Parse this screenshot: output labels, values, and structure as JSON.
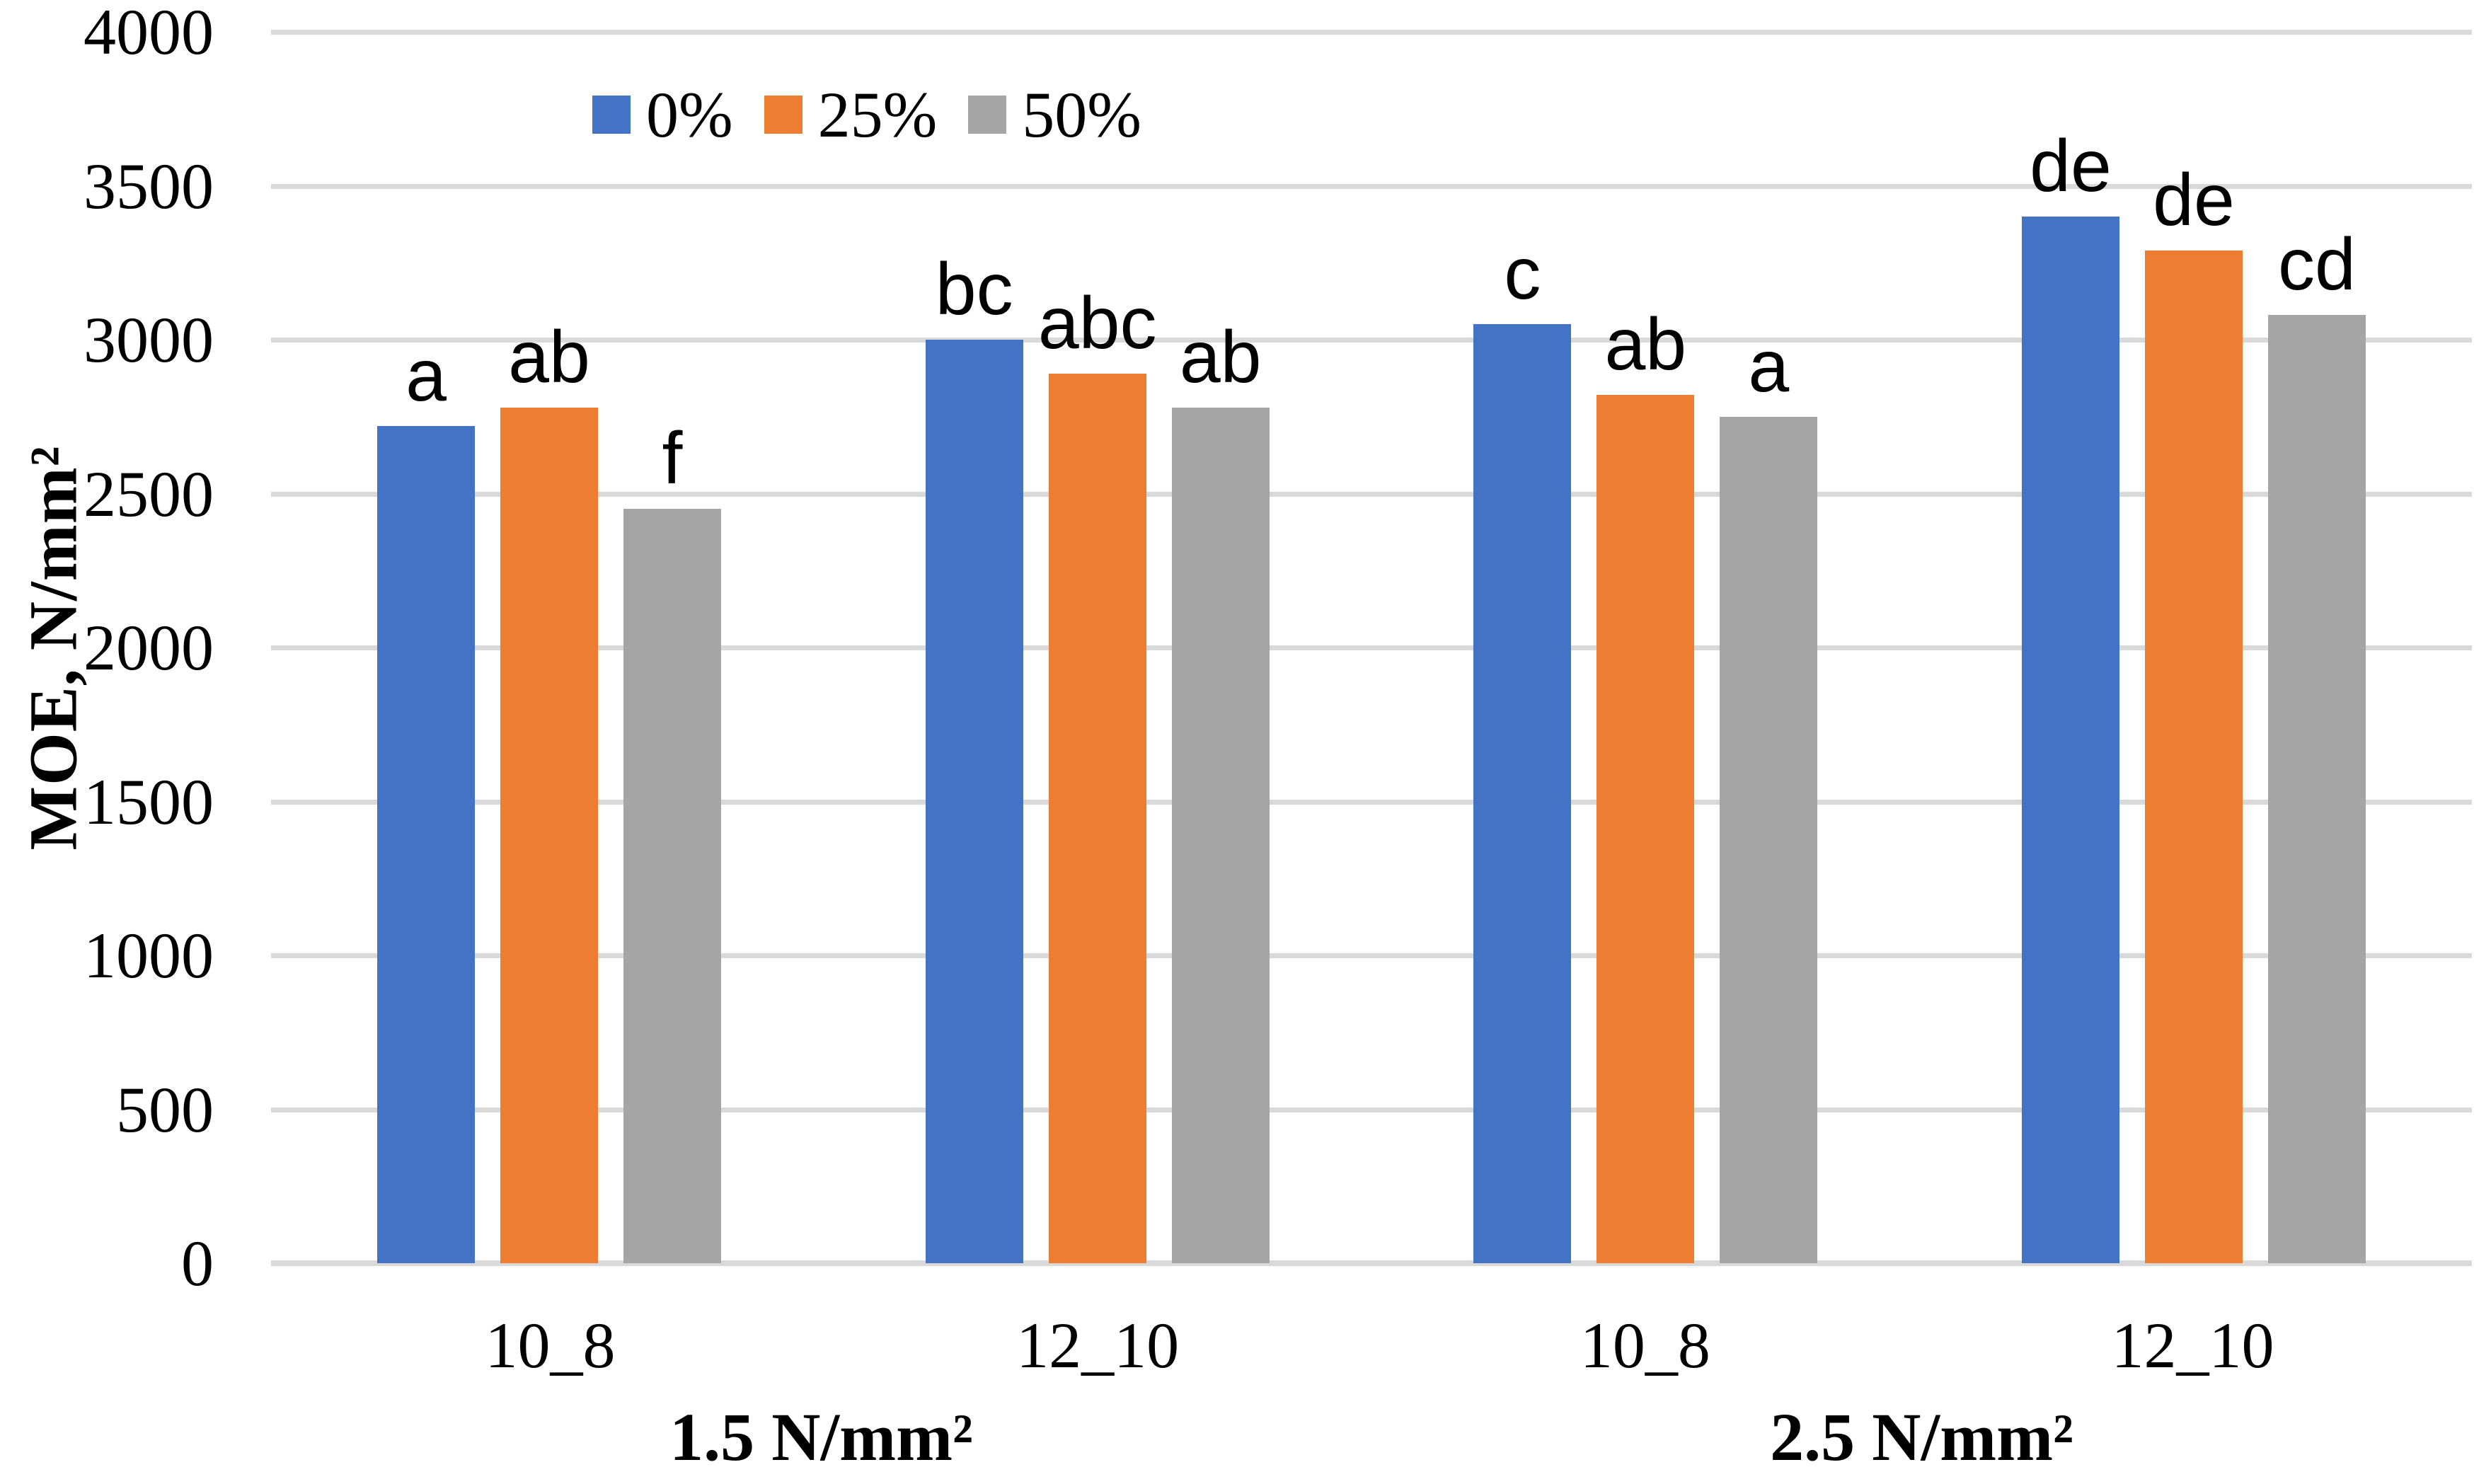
{
  "chart_data": {
    "type": "bar",
    "title": "",
    "ylabel": "MOE, N/mm²",
    "xlabel": "",
    "ylim": [
      0,
      4000
    ],
    "ytick_step": 500,
    "yticks": [
      0,
      500,
      1000,
      1500,
      2000,
      2500,
      3000,
      3500,
      4000
    ],
    "grid": "horizontal",
    "gridline_color": "#D9D9D9",
    "axis_line_color": "#D9D9D9",
    "background_color": "#FFFFFF",
    "legend_position": "top",
    "groups": [
      {
        "label": "1.5 N/mm²",
        "categories": [
          "10_8",
          "12_10"
        ]
      },
      {
        "label": "2.5 N/mm²",
        "categories": [
          "10_8",
          "12_10"
        ]
      }
    ],
    "categories": [
      "10_8",
      "12_10",
      "10_8",
      "12_10"
    ],
    "series": [
      {
        "name": "0%",
        "color": "#4472C4",
        "values": [
          2720,
          3000,
          3050,
          3400
        ],
        "sig_letters": [
          "a",
          "bc",
          "c",
          "de"
        ]
      },
      {
        "name": "25%",
        "color": "#ED7D31",
        "values": [
          2780,
          2890,
          2820,
          3290
        ],
        "sig_letters": [
          "ab",
          "abc",
          "ab",
          "de"
        ]
      },
      {
        "name": "50%",
        "color": "#A5A5A5",
        "values": [
          2450,
          2780,
          2750,
          3080
        ],
        "sig_letters": [
          "f",
          "ab",
          "a",
          "cd"
        ]
      }
    ]
  }
}
